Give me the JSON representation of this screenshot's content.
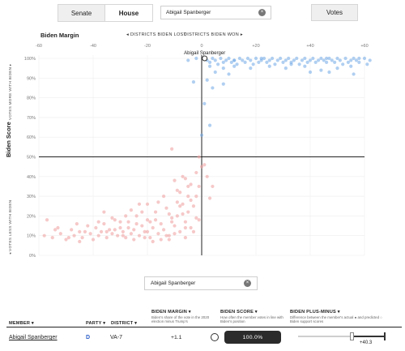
{
  "tabs": {
    "senate": "Senate",
    "house": "House",
    "active": "House"
  },
  "search": {
    "value": "Abigail Spanberger",
    "clear_symbol": "×"
  },
  "votes_button": "Votes",
  "chart_labels": {
    "x_title": "Biden Margin",
    "left_direction": "◂ DISTRICTS BIDEN LOST",
    "right_direction": "DISTRICTS BIDEN WON ▸",
    "y_title": "Biden Score",
    "y_more": "VOTES MORE WITH BIDEN ▸",
    "y_less": "◂ VOTES LESS WITH BIDEN",
    "highlight_label": "Abigail Spanberger"
  },
  "chart_data": {
    "type": "scatter",
    "xlabel": "Biden Margin",
    "ylabel": "Biden Score",
    "xlim": [
      -60,
      60
    ],
    "ylim": [
      0,
      100
    ],
    "x_ticks": [
      "-60",
      "-40",
      "-20",
      "0",
      "+20",
      "+40",
      "+60"
    ],
    "y_ticks": [
      "0%",
      "10%",
      "20%",
      "30%",
      "40%",
      "50%",
      "60%",
      "70%",
      "80%",
      "90%",
      "100%"
    ],
    "reference_lines": {
      "x": 0,
      "y": 50
    },
    "colors": {
      "democrat": "#6fa8e6",
      "republican": "#f0a3a3",
      "highlight": "#333333"
    },
    "highlight": {
      "name": "Abigail Spanberger",
      "x": 1.1,
      "y": 100
    },
    "democrats": [
      [
        1.1,
        100
      ],
      [
        2,
        99
      ],
      [
        3,
        98
      ],
      [
        4,
        100
      ],
      [
        5,
        99
      ],
      [
        6,
        97
      ],
      [
        7,
        100
      ],
      [
        8,
        98
      ],
      [
        9,
        99
      ],
      [
        10,
        100
      ],
      [
        11,
        98
      ],
      [
        12,
        99
      ],
      [
        13,
        97
      ],
      [
        14,
        100
      ],
      [
        15,
        99
      ],
      [
        16,
        98
      ],
      [
        17,
        100
      ],
      [
        18,
        99
      ],
      [
        19,
        97
      ],
      [
        20,
        100
      ],
      [
        21,
        98
      ],
      [
        22,
        99
      ],
      [
        23,
        100
      ],
      [
        24,
        98
      ],
      [
        25,
        99
      ],
      [
        26,
        100
      ],
      [
        27,
        97
      ],
      [
        28,
        99
      ],
      [
        29,
        100
      ],
      [
        30,
        98
      ],
      [
        31,
        99
      ],
      [
        32,
        100
      ],
      [
        33,
        98
      ],
      [
        34,
        99
      ],
      [
        35,
        100
      ],
      [
        36,
        97
      ],
      [
        37,
        99
      ],
      [
        38,
        100
      ],
      [
        39,
        98
      ],
      [
        40,
        99
      ],
      [
        41,
        100
      ],
      [
        42,
        98
      ],
      [
        43,
        99
      ],
      [
        44,
        100
      ],
      [
        45,
        99
      ],
      [
        46,
        98
      ],
      [
        47,
        100
      ],
      [
        48,
        99
      ],
      [
        49,
        98
      ],
      [
        50,
        100
      ],
      [
        51,
        99
      ],
      [
        52,
        97
      ],
      [
        53,
        100
      ],
      [
        54,
        98
      ],
      [
        55,
        99
      ],
      [
        56,
        100
      ],
      [
        57,
        99
      ],
      [
        58,
        98
      ],
      [
        60,
        100
      ],
      [
        62,
        99
      ],
      [
        3,
        96
      ],
      [
        8,
        95
      ],
      [
        12,
        96
      ],
      [
        18,
        95
      ],
      [
        25,
        96
      ],
      [
        31,
        95
      ],
      [
        38,
        96
      ],
      [
        44,
        94
      ],
      [
        50,
        95
      ],
      [
        55,
        96
      ],
      [
        5,
        93
      ],
      [
        10,
        92
      ],
      [
        40,
        93
      ],
      [
        56,
        92
      ],
      [
        47,
        93
      ],
      [
        2,
        89
      ],
      [
        4,
        85
      ],
      [
        8,
        87
      ],
      [
        1,
        77
      ],
      [
        3,
        66
      ],
      [
        -3,
        88
      ],
      [
        -2,
        100
      ],
      [
        -5,
        99
      ],
      [
        0,
        61
      ],
      [
        12,
        99
      ],
      [
        22,
        100
      ],
      [
        33,
        97
      ],
      [
        46,
        100
      ],
      [
        58,
        100
      ],
      [
        61,
        97
      ]
    ],
    "republicans": [
      [
        -57,
        18
      ],
      [
        -55,
        9
      ],
      [
        -52,
        11
      ],
      [
        -50,
        8
      ],
      [
        -48,
        13
      ],
      [
        -47,
        10
      ],
      [
        -45,
        12
      ],
      [
        -44,
        9
      ],
      [
        -42,
        15
      ],
      [
        -41,
        11
      ],
      [
        -40,
        8
      ],
      [
        -39,
        14
      ],
      [
        -38,
        10
      ],
      [
        -37,
        12
      ],
      [
        -36,
        16
      ],
      [
        -35,
        9
      ],
      [
        -34,
        13
      ],
      [
        -33,
        11
      ],
      [
        -32,
        18
      ],
      [
        -31,
        10
      ],
      [
        -30,
        14
      ],
      [
        -29,
        12
      ],
      [
        -28,
        9
      ],
      [
        -27,
        17
      ],
      [
        -26,
        11
      ],
      [
        -25,
        13
      ],
      [
        -24,
        20
      ],
      [
        -23,
        10
      ],
      [
        -22,
        15
      ],
      [
        -21,
        12
      ],
      [
        -20,
        18
      ],
      [
        -19,
        9
      ],
      [
        -18,
        14
      ],
      [
        -17,
        22
      ],
      [
        -16,
        11
      ],
      [
        -15,
        16
      ],
      [
        -14,
        13
      ],
      [
        -13,
        24
      ],
      [
        -12,
        10
      ],
      [
        -11,
        19
      ],
      [
        -10,
        15
      ],
      [
        -9,
        27
      ],
      [
        -8,
        12
      ],
      [
        -7,
        21
      ],
      [
        -6,
        17
      ],
      [
        -5,
        30
      ],
      [
        -4,
        14
      ],
      [
        -3,
        25
      ],
      [
        -2,
        19
      ],
      [
        -1,
        35
      ],
      [
        -36,
        22
      ],
      [
        -28,
        20
      ],
      [
        -20,
        26
      ],
      [
        -14,
        30
      ],
      [
        -10,
        38
      ],
      [
        -8,
        32
      ],
      [
        -6,
        39
      ],
      [
        -4,
        28
      ],
      [
        -2,
        42
      ],
      [
        0,
        45
      ],
      [
        -25,
        8
      ],
      [
        -18,
        7
      ],
      [
        -12,
        8
      ],
      [
        -45,
        7
      ],
      [
        -33,
        19
      ],
      [
        -22,
        22
      ],
      [
        -16,
        27
      ],
      [
        -12,
        21
      ],
      [
        -7,
        26
      ],
      [
        -4,
        36
      ],
      [
        -24,
        16
      ],
      [
        -30,
        17
      ],
      [
        -26,
        23
      ],
      [
        -19,
        17
      ],
      [
        -9,
        20
      ],
      [
        -1,
        18
      ],
      [
        -3,
        12
      ],
      [
        -6,
        9
      ],
      [
        -15,
        8
      ],
      [
        -11,
        17
      ],
      [
        -23,
        26
      ],
      [
        -17,
        18
      ],
      [
        -5,
        22
      ],
      [
        -8,
        25
      ],
      [
        -2,
        30
      ],
      [
        -13,
        10
      ],
      [
        -21,
        9
      ],
      [
        -38,
        17
      ],
      [
        -43,
        12
      ],
      [
        -49,
        9
      ],
      [
        -58,
        10
      ],
      [
        -53,
        14
      ],
      [
        -46,
        16
      ],
      [
        -54,
        13
      ],
      [
        -32,
        13
      ],
      [
        -27,
        14
      ],
      [
        -20,
        12
      ],
      [
        -10,
        11
      ],
      [
        -6,
        14
      ],
      [
        -9,
        33
      ],
      [
        -11,
        54
      ],
      [
        -7,
        40
      ],
      [
        -5,
        35
      ],
      [
        -1,
        50
      ],
      [
        1,
        46
      ],
      [
        2,
        40
      ],
      [
        4,
        35
      ],
      [
        3,
        29
      ],
      [
        -29,
        10
      ],
      [
        -35,
        12
      ]
    ]
  },
  "table": {
    "headers": {
      "member": "MEMBER ▾",
      "party": "PARTY ▾",
      "district": "DISTRICT ▾",
      "margin": "BIDEN MARGIN ▾",
      "score": "BIDEN SCORE ▾",
      "plusminus": "BIDEN PLUS-MINUS ▾"
    },
    "descriptions": {
      "margin": "Biden's share of the vote in the 2020 election minus Trump's",
      "score": "How often the member votes in line with Biden's position",
      "plusminus": "Difference between the member's actual ● and predicted ○ Biden support scores"
    },
    "row": {
      "member": "Abigail Spanberger",
      "party": "D",
      "district": "VA-7",
      "margin": "+1.1",
      "score": "100.0%",
      "plusminus": "+40.3",
      "plusminus_value": 40.3
    }
  }
}
